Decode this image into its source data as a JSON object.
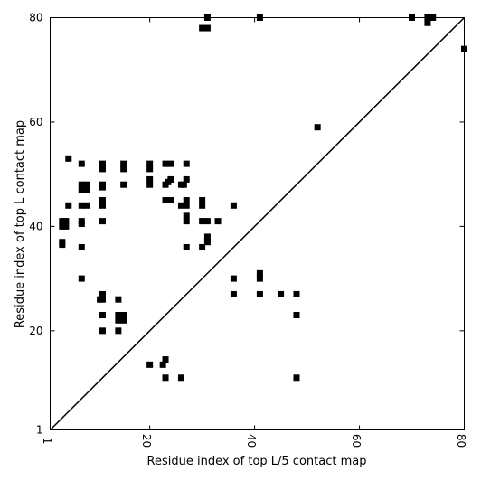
{
  "chart_data": {
    "type": "scatter",
    "xlabel": "Residue index of top L/5 contact map",
    "ylabel": "Residue index of top L contact map",
    "xlim": [
      1,
      80
    ],
    "ylim": [
      1,
      80
    ],
    "xticks": [
      1,
      20,
      40,
      60,
      80
    ],
    "yticks": [
      1,
      20,
      40,
      60,
      80
    ],
    "grid": false,
    "diagonal_line": [
      [
        1,
        1
      ],
      [
        80,
        80
      ]
    ],
    "marker": "square",
    "marker_color": "#000000",
    "series": [
      {
        "values": [
          [
            3.7,
            40.5
          ],
          [
            3.3,
            40
          ],
          [
            4,
            40
          ],
          [
            3.3,
            41
          ],
          [
            4,
            41
          ],
          [
            3.3,
            36.5
          ],
          [
            3.3,
            37
          ],
          [
            4.5,
            44
          ],
          [
            4.5,
            53
          ],
          [
            7.5,
            47.5
          ],
          [
            7,
            47
          ],
          [
            8,
            47
          ],
          [
            7,
            48
          ],
          [
            8,
            48
          ],
          [
            7,
            44
          ],
          [
            8,
            44
          ],
          [
            7,
            40.5
          ],
          [
            7,
            41
          ],
          [
            7,
            52
          ],
          [
            7,
            36
          ],
          [
            7,
            30
          ],
          [
            11,
            52
          ],
          [
            11,
            51
          ],
          [
            11,
            48
          ],
          [
            11,
            47.5
          ],
          [
            11,
            45
          ],
          [
            11,
            44
          ],
          [
            11,
            41
          ],
          [
            11,
            27
          ],
          [
            10.5,
            26
          ],
          [
            11,
            26
          ],
          [
            11,
            23
          ],
          [
            11,
            20
          ],
          [
            14,
            26
          ],
          [
            14,
            20
          ],
          [
            14.5,
            22.5
          ],
          [
            14,
            22
          ],
          [
            15,
            22
          ],
          [
            14,
            23
          ],
          [
            15,
            23
          ],
          [
            15,
            52
          ],
          [
            15,
            51
          ],
          [
            15,
            48
          ],
          [
            20,
            52
          ],
          [
            20,
            51
          ],
          [
            20,
            49
          ],
          [
            20,
            48
          ],
          [
            20,
            13.5
          ],
          [
            22.5,
            13.5
          ],
          [
            23,
            14.5
          ],
          [
            23,
            11
          ],
          [
            23,
            52
          ],
          [
            24,
            52
          ],
          [
            23.5,
            48.5
          ],
          [
            23,
            48
          ],
          [
            24,
            49
          ],
          [
            23,
            45
          ],
          [
            24,
            45
          ],
          [
            26,
            48
          ],
          [
            27,
            49
          ],
          [
            26.5,
            48
          ],
          [
            26,
            44
          ],
          [
            27,
            44
          ],
          [
            27,
            45
          ],
          [
            27,
            52
          ],
          [
            27,
            42
          ],
          [
            27,
            41
          ],
          [
            27,
            36
          ],
          [
            26,
            11
          ],
          [
            30,
            78
          ],
          [
            31,
            78
          ],
          [
            31,
            80
          ],
          [
            30,
            45
          ],
          [
            30,
            44
          ],
          [
            30,
            41
          ],
          [
            31,
            41
          ],
          [
            30,
            36
          ],
          [
            31,
            38
          ],
          [
            31,
            37
          ],
          [
            33,
            41
          ],
          [
            36,
            44
          ],
          [
            36,
            30
          ],
          [
            36,
            27
          ],
          [
            41,
            80
          ],
          [
            41,
            31
          ],
          [
            41,
            30
          ],
          [
            41,
            27
          ],
          [
            45,
            27
          ],
          [
            48,
            27
          ],
          [
            48,
            23
          ],
          [
            48,
            11
          ],
          [
            52,
            59
          ],
          [
            70,
            80
          ],
          [
            73,
            80
          ],
          [
            74,
            80
          ],
          [
            73,
            79
          ],
          [
            80,
            74
          ]
        ]
      }
    ]
  }
}
